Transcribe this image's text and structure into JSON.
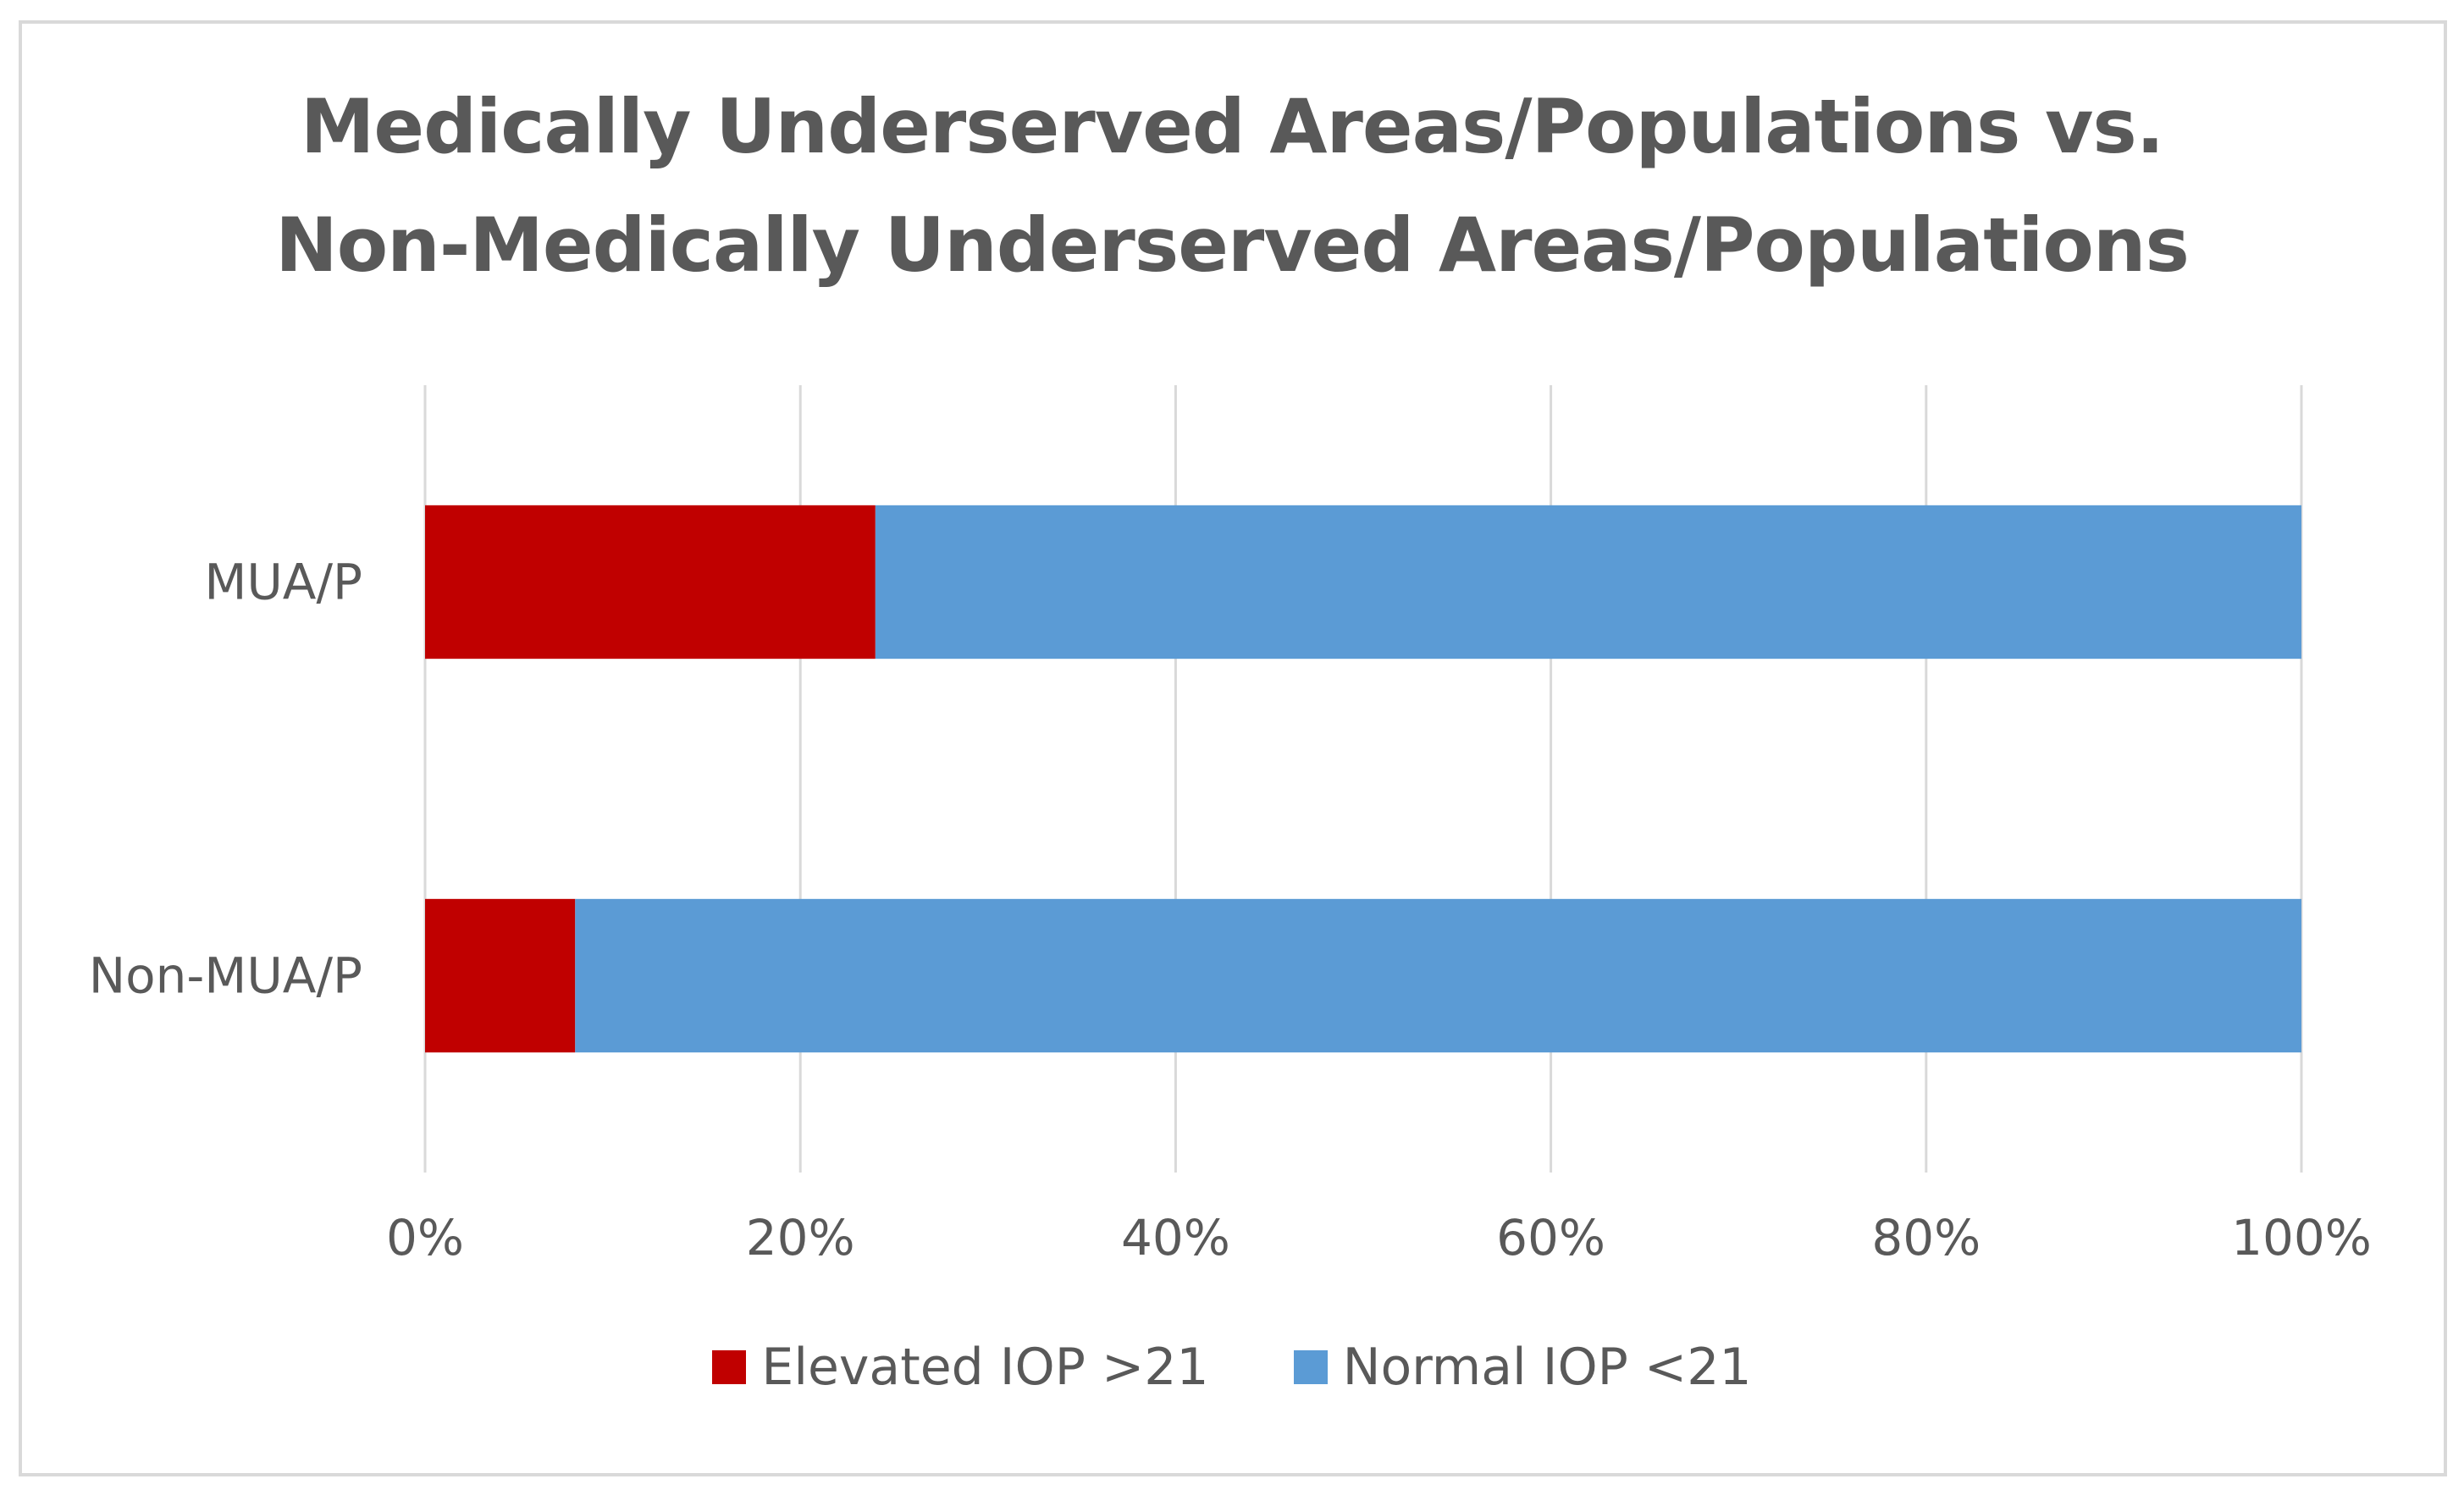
{
  "chart_data": {
    "type": "bar",
    "orientation": "horizontal",
    "stacking": "percent",
    "title": "Medically Underserved Areas/Populations vs. Non-Medically Underserved Areas/Populations",
    "title_lines": [
      "Medically Underserved Areas/Populations vs.",
      "Non-Medically Underserved Areas/Populations"
    ],
    "categories": [
      "MUA/P",
      "Non-MUA/P"
    ],
    "series": [
      {
        "name": "Elevated IOP >21",
        "color": "#c00000",
        "values": [
          24,
          8
        ]
      },
      {
        "name": "Normal IOP <21",
        "color": "#5b9bd5",
        "values": [
          76,
          92
        ]
      }
    ],
    "xlim": [
      0,
      100
    ],
    "x_ticks": [
      0,
      20,
      40,
      60,
      80,
      100
    ],
    "x_tick_labels": [
      "0%",
      "20%",
      "40%",
      "60%",
      "80%",
      "100%"
    ],
    "grid": "vertical",
    "legend_position": "bottom"
  }
}
